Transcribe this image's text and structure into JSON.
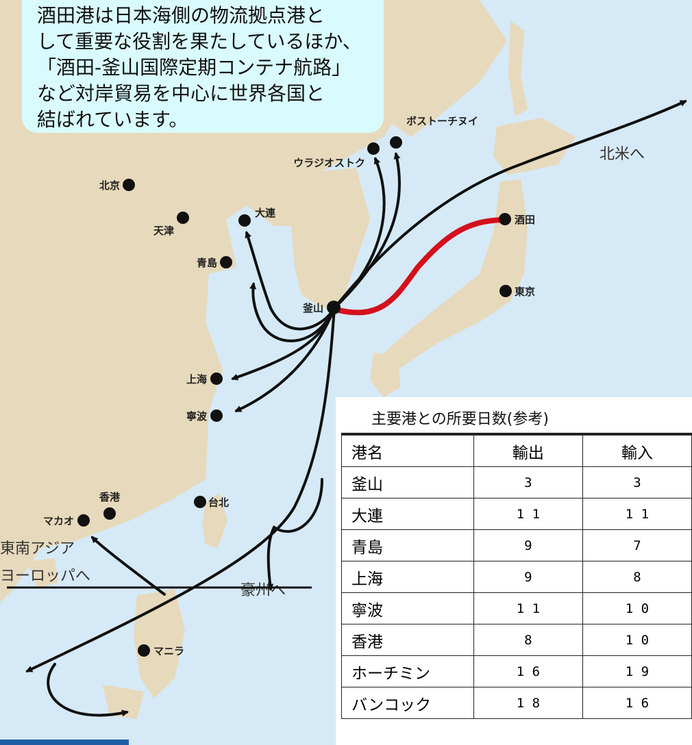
{
  "callout": {
    "lines": [
      "酒田港は日本海側の物流拠点港と",
      "して重要な役割を果たしているほか、",
      "「酒田-釜山国際定期コンテナ航路」",
      "など対岸貿易を中心に世界各国と",
      "結ばれています。"
    ]
  },
  "map": {
    "colors": {
      "sea": "#d6e9f6",
      "land": "#e7d9bb",
      "route": "#111111",
      "highlight_route": "#d3101c"
    },
    "ports": [
      {
        "id": "vostochny",
        "label": "ボストーチヌイ"
      },
      {
        "id": "vladivostok",
        "label": "ウラジオストク"
      },
      {
        "id": "beijing",
        "label": "北京"
      },
      {
        "id": "tianjin",
        "label": "天津"
      },
      {
        "id": "dalian",
        "label": "大連"
      },
      {
        "id": "qingdao",
        "label": "青島"
      },
      {
        "id": "busan",
        "label": "釜山"
      },
      {
        "id": "sakata",
        "label": "酒田"
      },
      {
        "id": "tokyo",
        "label": "東京"
      },
      {
        "id": "shanghai",
        "label": "上海"
      },
      {
        "id": "ningbo",
        "label": "寧波"
      },
      {
        "id": "hongkong",
        "label": "香港"
      },
      {
        "id": "macau",
        "label": "マカオ"
      },
      {
        "id": "taipei",
        "label": "台北"
      },
      {
        "id": "manila",
        "label": "マニラ"
      }
    ],
    "regions": {
      "north_america": "北米へ",
      "se_asia_line1": "東南アジア",
      "se_asia_line2": "ヨーロッパへ",
      "australia": "豪州へ"
    }
  },
  "table": {
    "title": "主要港との所要日数(参考)",
    "headers": [
      "港名",
      "輸出",
      "輸入"
    ],
    "rows": [
      [
        "釜山",
        "3",
        "3"
      ],
      [
        "大連",
        "1 1",
        "1 1"
      ],
      [
        "青島",
        "9",
        "7"
      ],
      [
        "上海",
        "9",
        "8"
      ],
      [
        "寧波",
        "1 1",
        "1 0"
      ],
      [
        "香港",
        "8",
        "1 0"
      ],
      [
        "ホーチミン",
        "1 6",
        "1 9"
      ],
      [
        "バンコック",
        "1 8",
        "1 6"
      ]
    ]
  }
}
